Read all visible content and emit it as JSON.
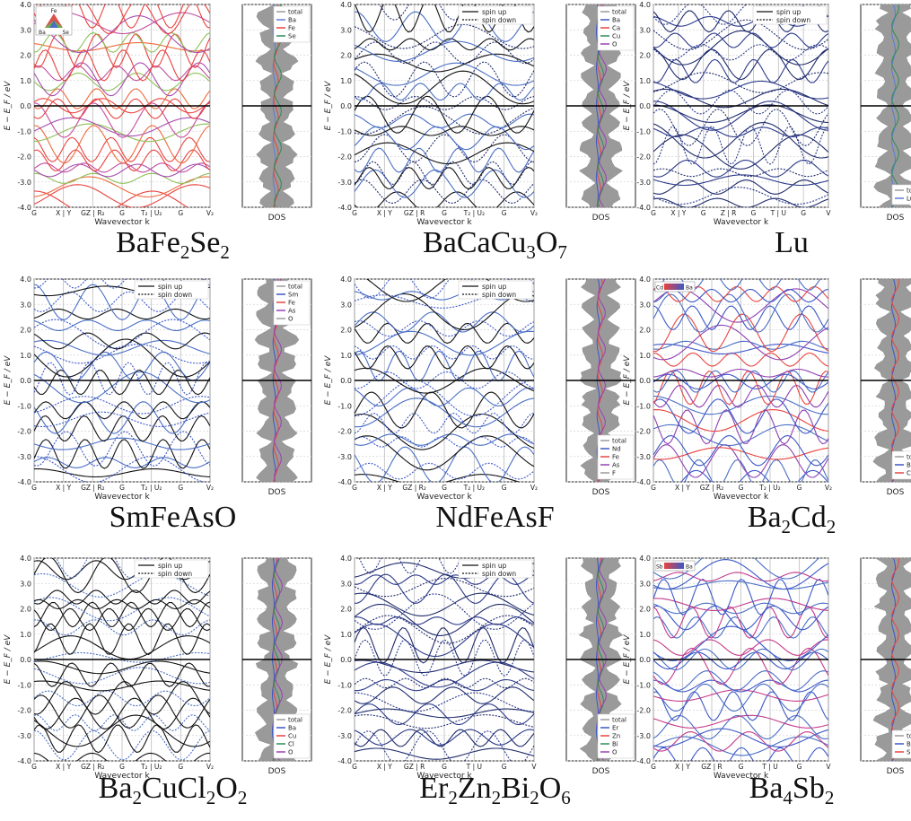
{
  "figure": {
    "yticks": [
      "-4.0",
      "-3.0",
      "-2.0",
      "-1.0",
      "0.0",
      "1.0",
      "2.0",
      "3.0",
      "4.0"
    ],
    "ylabel": "E − E_F / eV",
    "xlabel": "Wavevector k",
    "dos_label": "DOS"
  },
  "chart_data": [
    {
      "type": "line",
      "title": "BaFe2Se2",
      "formula": [
        [
          "BaFe",
          ""
        ],
        [
          "2",
          "sub"
        ],
        [
          "Se",
          ""
        ],
        [
          "2",
          "sub"
        ]
      ],
      "kpoints": [
        "G",
        "X | Y",
        "GZ | R₂",
        "G",
        "T₂ | U₂",
        "G",
        "V₂"
      ],
      "legend_bands": [],
      "legend_dos": [
        "total",
        "Ba",
        "Fe",
        "Se"
      ],
      "projection": {
        "type": "triangle",
        "labels": [
          "Fe",
          "Ba",
          "Se"
        ]
      },
      "band_colors": [
        "#e8433f",
        "#e8433f",
        "#ee6a3b",
        "#8cc157",
        "#a64fb0",
        "#c34ea0"
      ],
      "dos_colors": [
        "#5a7bd6",
        "#e8433f",
        "#2e8b57"
      ],
      "ylim": [
        -4,
        4
      ]
    },
    {
      "type": "line",
      "title": "BaCaCu3O7",
      "formula": [
        [
          "BaCaCu",
          ""
        ],
        [
          "3",
          "sub"
        ],
        [
          "O",
          ""
        ],
        [
          "7",
          "sub"
        ]
      ],
      "kpoints": [
        "G",
        "X | Y",
        "GZ | R",
        "G",
        "T₂ | U₂",
        "G",
        "V₂"
      ],
      "legend_bands": [
        "spin up",
        "spin down"
      ],
      "legend_dos": [
        "total",
        "Ba",
        "Ca",
        "Cu",
        "O"
      ],
      "band_colors": [
        "#111111",
        "#1f2b6b",
        "#4a6fc4"
      ],
      "dos_colors": [
        "#3b57c7",
        "#e8433f",
        "#2e8b57",
        "#9b3fb5"
      ],
      "ylim": [
        -4,
        4
      ]
    },
    {
      "type": "line",
      "title": "Lu",
      "formula": [
        [
          "Lu",
          ""
        ]
      ],
      "kpoints": [
        "G",
        "X | Y",
        "G",
        "Z | R",
        "G",
        "T | U",
        "G",
        "V"
      ],
      "legend_bands": [
        "spin up",
        "spin down"
      ],
      "legend_dos": [
        "total",
        "Lu"
      ],
      "band_colors": [
        "#1f2b6b",
        "#2c3a8a"
      ],
      "dos_colors": [
        "#5a7bd6",
        "#2e8b57"
      ],
      "ylim": [
        -4,
        4
      ]
    },
    {
      "type": "line",
      "title": "SmFeAsO",
      "formula": [
        [
          "SmFeAsO",
          ""
        ]
      ],
      "kpoints": [
        "G",
        "X | Y",
        "GZ | R₂",
        "G",
        "T₂ | U₂",
        "G",
        "V₂"
      ],
      "legend_bands": [
        "spin up",
        "spin down"
      ],
      "legend_dos": [
        "total",
        "Sm",
        "Fe",
        "As",
        "O"
      ],
      "band_colors": [
        "#111111",
        "#3b57c7",
        "#4a6fc4"
      ],
      "dos_colors": [
        "#3b57c7",
        "#e8433f",
        "#9b3fb5"
      ],
      "ylim": [
        -4,
        4
      ]
    },
    {
      "type": "line",
      "title": "NdFeAsF",
      "formula": [
        [
          "NdFeAsF",
          ""
        ]
      ],
      "kpoints": [
        "G",
        "X | Y",
        "GZ | R₂",
        "G",
        "T₂ | U₂",
        "G",
        "V₂"
      ],
      "legend_bands": [
        "spin up",
        "spin down"
      ],
      "legend_dos": [
        "total",
        "Nd",
        "Fe",
        "As",
        "F"
      ],
      "band_colors": [
        "#111111",
        "#3b57c7",
        "#4a6fc4"
      ],
      "dos_colors": [
        "#3b57c7",
        "#e8433f",
        "#9b3fb5"
      ],
      "ylim": [
        -4,
        4
      ]
    },
    {
      "type": "line",
      "title": "Ba2Cd2",
      "formula": [
        [
          "Ba",
          ""
        ],
        [
          "2",
          "sub"
        ],
        [
          "Cd",
          ""
        ],
        [
          "2",
          "sub"
        ]
      ],
      "kpoints": [
        "G",
        "X | Y",
        "GZ | R₂",
        "G",
        "T₂ | U₂",
        "G",
        "V₂"
      ],
      "legend_bands": [],
      "legend_dos": [
        "tota",
        "Ba",
        "Cd"
      ],
      "projection": {
        "type": "bar",
        "labels": [
          "Cd",
          "Ba"
        ]
      },
      "band_colors": [
        "#3b57c7",
        "#4a6fc4",
        "#8e3fb0",
        "#e8433f"
      ],
      "dos_colors": [
        "#3b57c7",
        "#e8433f"
      ],
      "ylim": [
        -4,
        4
      ]
    },
    {
      "type": "line",
      "title": "Ba2CuCl2O2",
      "formula": [
        [
          "Ba",
          ""
        ],
        [
          "2",
          "sub"
        ],
        [
          "CuCl",
          ""
        ],
        [
          "2",
          "sub"
        ],
        [
          "O",
          ""
        ],
        [
          "2",
          "sub"
        ]
      ],
      "kpoints": [
        "G",
        "X | Y",
        "GZ | R₂",
        "G",
        "T₂ | U₂",
        "G",
        "V₂"
      ],
      "legend_bands": [
        "spin up",
        "spin down"
      ],
      "legend_dos": [
        "total",
        "Ba",
        "Cu",
        "Cl",
        "O"
      ],
      "band_colors": [
        "#111111",
        "#4a6fc4",
        "#111111"
      ],
      "dos_colors": [
        "#3b57c7",
        "#e8433f",
        "#2e8b57",
        "#9b3fb5"
      ],
      "ylim": [
        -4,
        4
      ]
    },
    {
      "type": "line",
      "title": "Er2Zn2Bi2O6",
      "formula": [
        [
          "Er",
          ""
        ],
        [
          "2",
          "sub"
        ],
        [
          "Zn",
          ""
        ],
        [
          "2",
          "sub"
        ],
        [
          "Bi",
          ""
        ],
        [
          "2",
          "sub"
        ],
        [
          "O",
          ""
        ],
        [
          "6",
          "sub"
        ]
      ],
      "kpoints": [
        "G",
        "X | Y",
        "GZ | R",
        "G",
        "T | U",
        "G",
        "V"
      ],
      "legend_bands": [
        "spin up",
        "spin down"
      ],
      "legend_dos": [
        "total",
        "Er",
        "Zn",
        "Bi",
        "O"
      ],
      "band_colors": [
        "#1f2b6b",
        "#2c3a8a"
      ],
      "dos_colors": [
        "#3b57c7",
        "#e8433f",
        "#2e8b57",
        "#9b3fb5"
      ],
      "ylim": [
        -4,
        4
      ]
    },
    {
      "type": "line",
      "title": "Ba4Sb2",
      "formula": [
        [
          "Ba",
          ""
        ],
        [
          "4",
          "sub"
        ],
        [
          "Sb",
          ""
        ],
        [
          "2",
          "sub"
        ]
      ],
      "kpoints": [
        "G",
        "X | Y",
        "GZ | R",
        "G",
        "T | U",
        "G",
        "V"
      ],
      "legend_bands": [],
      "legend_dos": [
        "total",
        "Ba",
        "Sb"
      ],
      "projection": {
        "type": "bar",
        "labels": [
          "Sb",
          "Ba"
        ]
      },
      "band_colors": [
        "#3b57c7",
        "#4a6fc4",
        "#c43a8a"
      ],
      "dos_colors": [
        "#3b57c7",
        "#e8433f"
      ],
      "ylim": [
        -4,
        4
      ]
    }
  ]
}
